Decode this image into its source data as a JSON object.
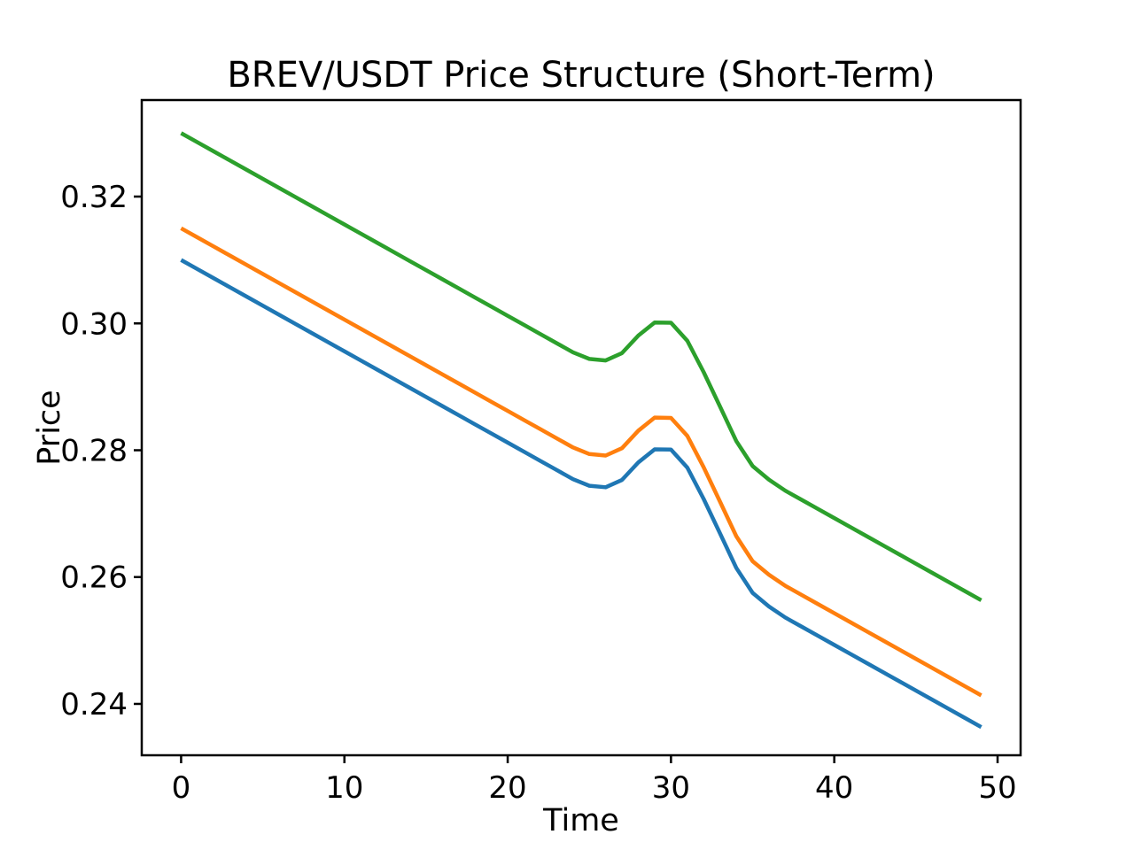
{
  "chart_data": {
    "type": "line",
    "title": "BREV/USDT Price Structure (Short-Term)",
    "xlabel": "Time",
    "ylabel": "Price",
    "background": "#ffffff",
    "axis_color": "#000000",
    "grid": false,
    "legend": "none",
    "xlim": [
      -2.41,
      51.41
    ],
    "ylim": [
      0.2319,
      0.33522
    ],
    "xticks": {
      "values": [
        0,
        10,
        20,
        30,
        40,
        50
      ],
      "labels": [
        "0",
        "10",
        "20",
        "30",
        "40",
        "50"
      ]
    },
    "yticks": {
      "values": [
        0.24,
        0.26,
        0.28,
        0.3,
        0.32
      ],
      "labels": [
        "0.24",
        "0.26",
        "0.28",
        "0.30",
        "0.32"
      ]
    },
    "x": [
      0,
      1,
      2,
      3,
      4,
      5,
      6,
      7,
      8,
      9,
      10,
      11,
      12,
      13,
      14,
      15,
      16,
      17,
      18,
      19,
      20,
      21,
      22,
      23,
      24,
      25,
      26,
      27,
      28,
      29,
      30,
      31,
      32,
      33,
      34,
      35,
      36,
      37,
      38,
      39,
      40,
      41,
      42,
      43,
      44,
      45,
      46,
      47,
      48,
      49
    ],
    "series": [
      {
        "name": "blue-line",
        "color": "#1f77b4",
        "values": [
          0.31,
          0.30856,
          0.30712,
          0.30568,
          0.30424,
          0.3028,
          0.30136,
          0.29992,
          0.29848,
          0.29704,
          0.2956,
          0.29416,
          0.29272,
          0.29128,
          0.28984,
          0.2884,
          0.28696,
          0.28552,
          0.28408,
          0.28264,
          0.2812,
          0.27976,
          0.27832,
          0.27688,
          0.27544,
          0.2744,
          0.27416,
          0.27532,
          0.27808,
          0.28014,
          0.2801,
          0.27726,
          0.27232,
          0.2669,
          0.26144,
          0.2575,
          0.25536,
          0.25362,
          0.25218,
          0.25074,
          0.2493,
          0.24786,
          0.24642,
          0.24498,
          0.24354,
          0.2421,
          0.24066,
          0.23922,
          0.23778,
          0.23634
        ]
      },
      {
        "name": "orange-line",
        "color": "#ff7f0e",
        "values": [
          0.315,
          0.31356,
          0.31212,
          0.31068,
          0.30924,
          0.3078,
          0.30636,
          0.30492,
          0.30348,
          0.30204,
          0.3006,
          0.29916,
          0.29772,
          0.29628,
          0.29484,
          0.2934,
          0.29196,
          0.29052,
          0.28908,
          0.28764,
          0.2862,
          0.28476,
          0.28332,
          0.28188,
          0.28044,
          0.2794,
          0.27916,
          0.28032,
          0.28308,
          0.28514,
          0.2851,
          0.28226,
          0.27732,
          0.2719,
          0.26644,
          0.2625,
          0.26036,
          0.25862,
          0.25718,
          0.25574,
          0.2543,
          0.25286,
          0.25142,
          0.24998,
          0.24854,
          0.2471,
          0.24566,
          0.24422,
          0.24278,
          0.24134
        ]
      },
      {
        "name": "green-line",
        "color": "#2ca02c",
        "values": [
          0.33,
          0.32856,
          0.32712,
          0.32568,
          0.32424,
          0.3228,
          0.32136,
          0.31992,
          0.31848,
          0.31704,
          0.3156,
          0.31416,
          0.31272,
          0.31128,
          0.30984,
          0.3084,
          0.30696,
          0.30552,
          0.30408,
          0.30264,
          0.3012,
          0.29976,
          0.29832,
          0.29688,
          0.29544,
          0.2944,
          0.29416,
          0.29532,
          0.29808,
          0.30014,
          0.3001,
          0.29726,
          0.29232,
          0.2869,
          0.28144,
          0.2775,
          0.27536,
          0.27362,
          0.27218,
          0.27074,
          0.2693,
          0.26786,
          0.26642,
          0.26498,
          0.26354,
          0.2621,
          0.26066,
          0.25922,
          0.25778,
          0.25634
        ]
      }
    ]
  }
}
